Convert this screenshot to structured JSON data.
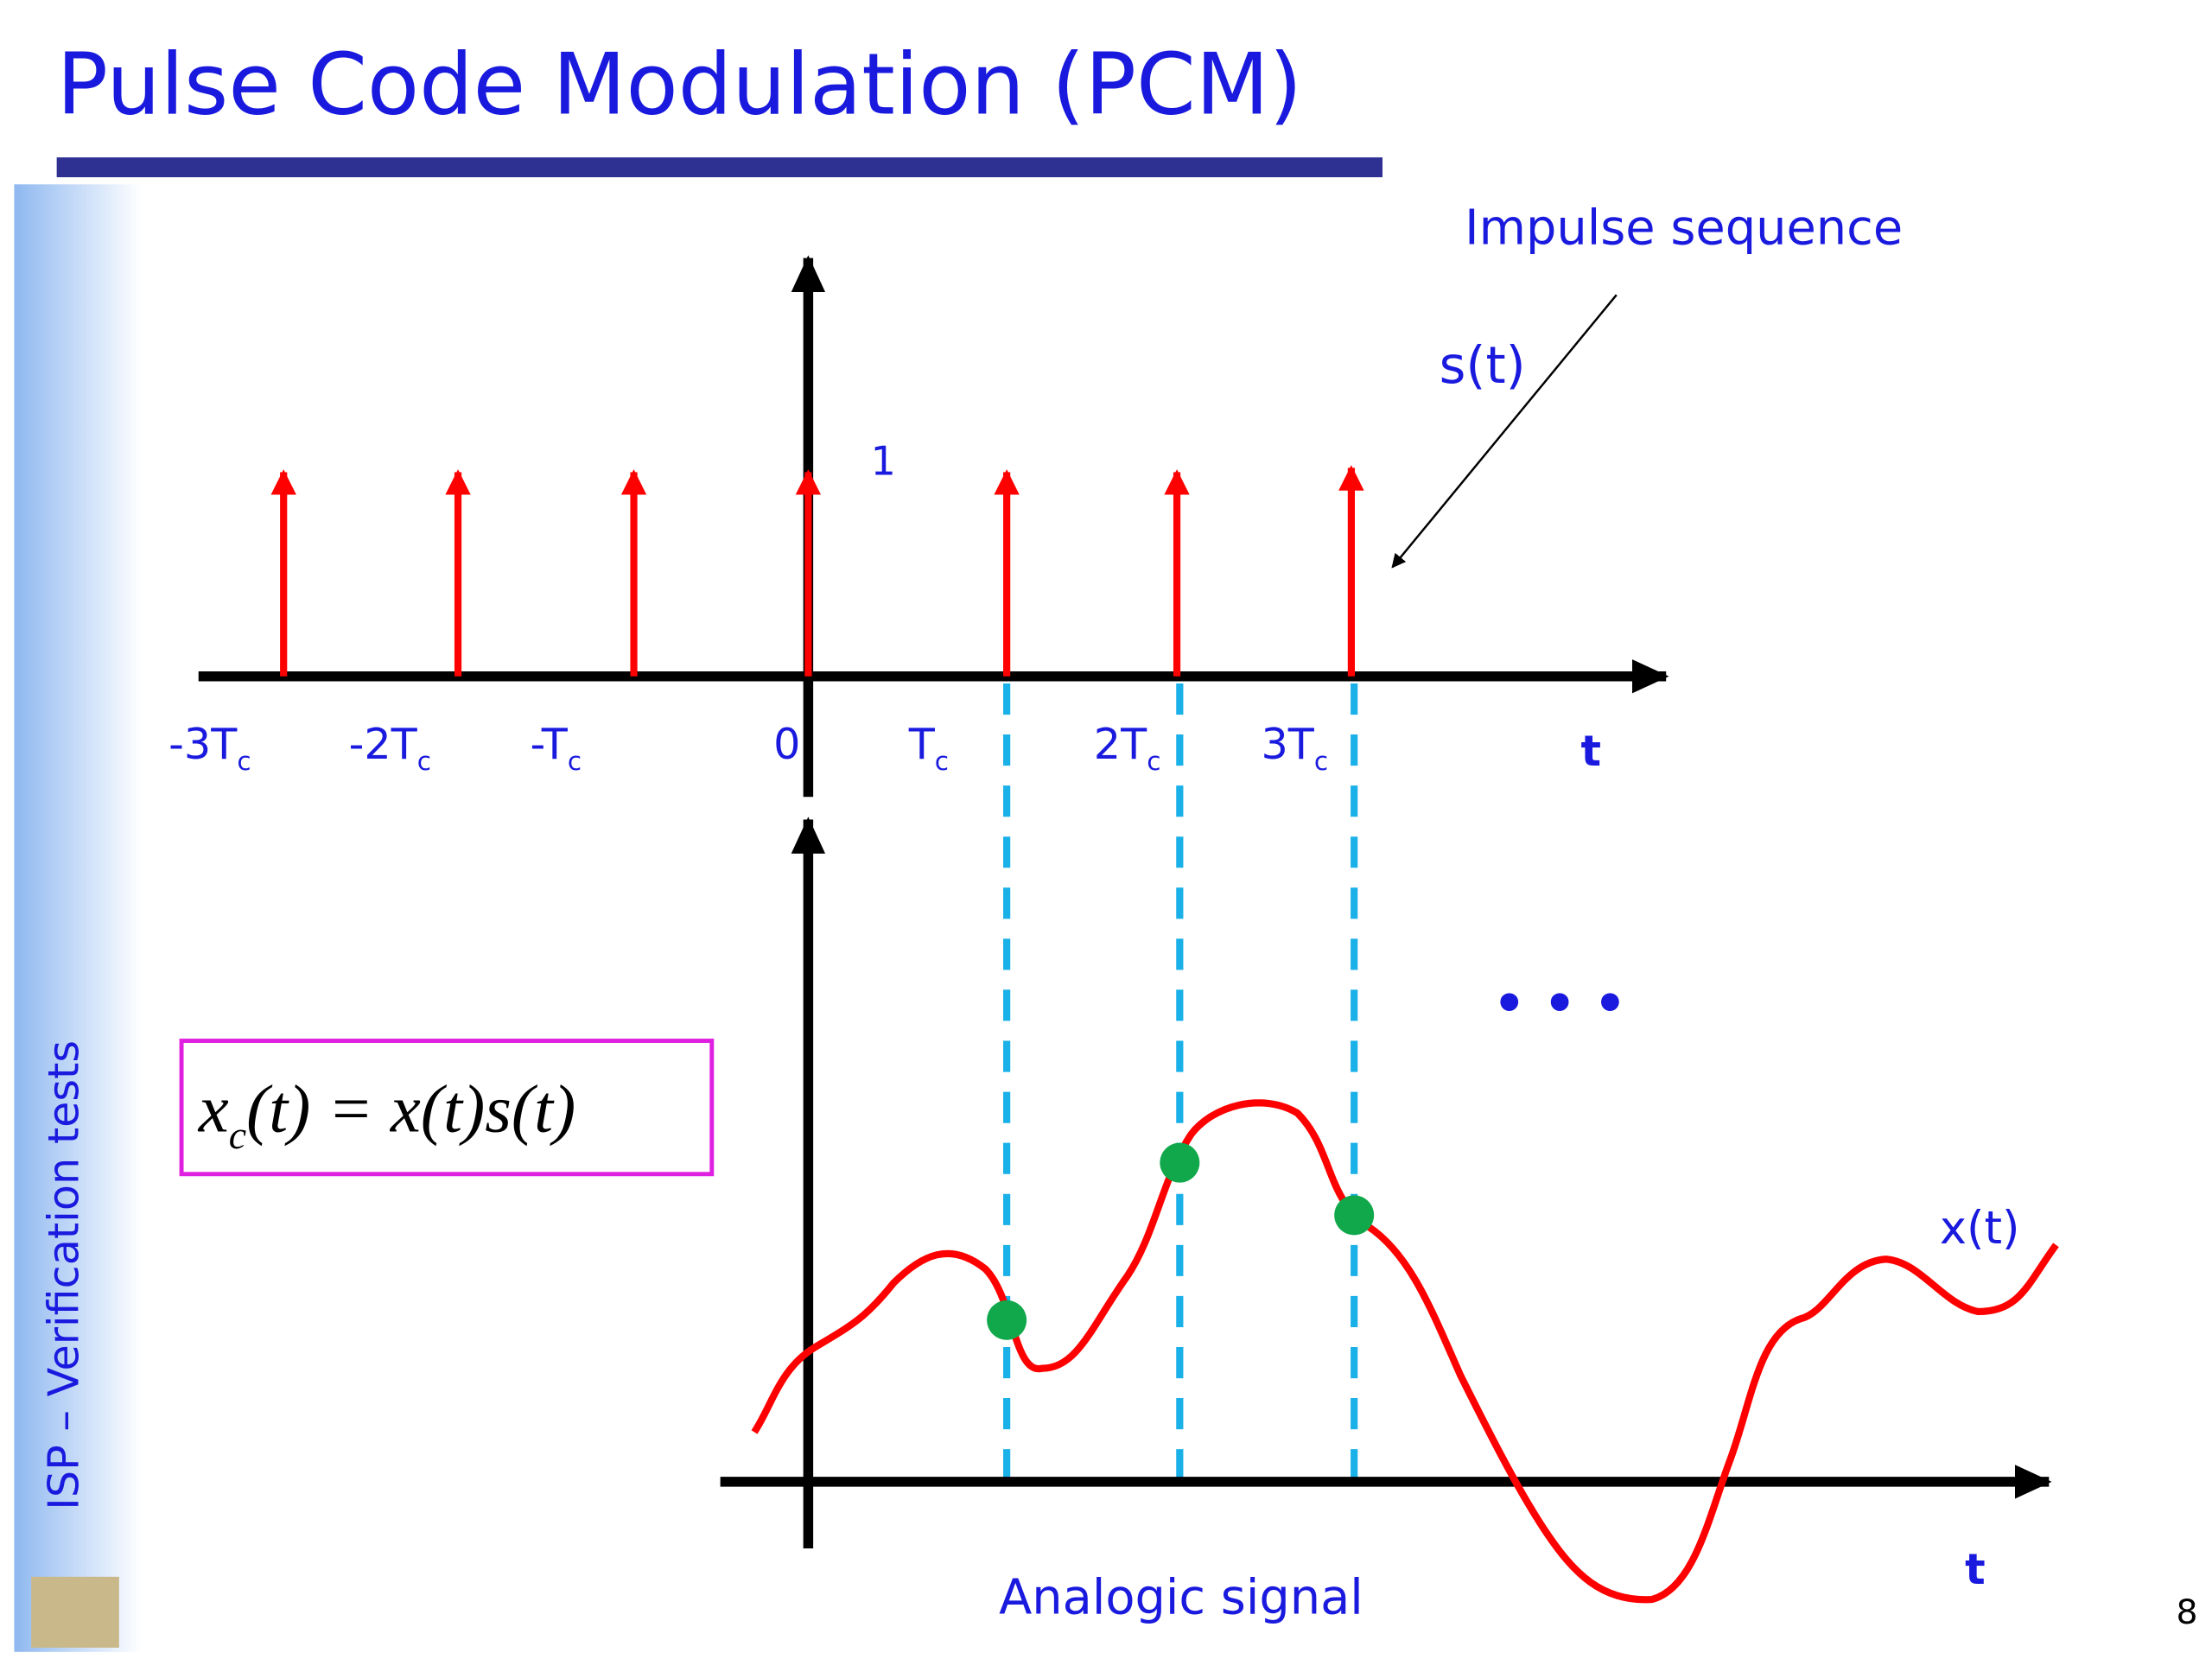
{
  "header": {
    "title": "Pulse Code Modulation (PCM)"
  },
  "sidebar": {
    "text": "ISP – Verification tests"
  },
  "top_plot": {
    "annotation": "Impulse sequence",
    "signal_label": "s(t)",
    "amplitude_label": "1",
    "axis_label": "t",
    "ticks": [
      {
        "main": "-3T",
        "sub": "c"
      },
      {
        "main": "-2T",
        "sub": "c"
      },
      {
        "main": "-T",
        "sub": "c"
      },
      {
        "main": "0"
      },
      {
        "main": "T",
        "sub": "c"
      },
      {
        "main": "2T",
        "sub": "c"
      },
      {
        "main": "3T",
        "sub": "c"
      }
    ]
  },
  "bottom_plot": {
    "signal_label": "x(t)",
    "ellipsis": "• • •",
    "axis_label": "t",
    "caption": "Analogic signal"
  },
  "equation": {
    "lhs": "x",
    "lhs_sub": "c",
    "rhs": "(t) = x(t)s(t)"
  },
  "footer": {
    "page_number": "8"
  }
}
